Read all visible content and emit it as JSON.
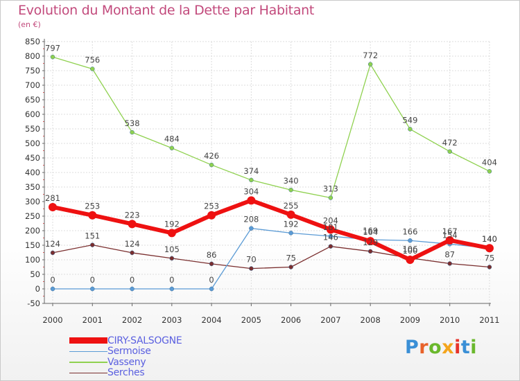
{
  "header": {
    "title": "Evolution du Montant de la Dette par Habitant",
    "subtitle": "(en €)"
  },
  "brand": {
    "letters": [
      "P",
      "r",
      "o",
      "x",
      "i",
      "t",
      "i"
    ],
    "colors": [
      "#3a8fd6",
      "#e8622a",
      "#6ab82c",
      "#f4a51c",
      "#e6332a",
      "#3a8fd6",
      "#6ab82c"
    ]
  },
  "chart_data": {
    "type": "line",
    "title": "Evolution du Montant de la Dette par Habitant",
    "subtitle": "(en €)",
    "xlabel": "",
    "ylabel": "",
    "ylim": [
      -50,
      850
    ],
    "yticks": [
      -50,
      0,
      50,
      100,
      150,
      200,
      250,
      300,
      350,
      400,
      450,
      500,
      550,
      600,
      650,
      700,
      750,
      800,
      850
    ],
    "x": [
      "2000",
      "2001",
      "2002",
      "2003",
      "2004",
      "2005",
      "2006",
      "2007",
      "2008",
      "2009",
      "2010",
      "2011"
    ],
    "grid": true,
    "legend_position": "bottom-left",
    "series": [
      {
        "name": "CIRY-SALSOGNE",
        "color": "#ee1111",
        "values": [
          281,
          253,
          223,
          192,
          253,
          304,
          255,
          204,
          164,
          100,
          167,
          140
        ]
      },
      {
        "name": "Sermoise",
        "color": "#5b9bd5",
        "values": [
          0,
          0,
          0,
          0,
          0,
          208,
          192,
          181,
          169,
          166,
          154,
          140
        ]
      },
      {
        "name": "Vasseny",
        "color": "#8fd14f",
        "values": [
          797,
          756,
          538,
          484,
          426,
          374,
          340,
          313,
          772,
          549,
          472,
          404
        ]
      },
      {
        "name": "Serches",
        "color": "#7a2e2e",
        "values": [
          124,
          151,
          124,
          105,
          86,
          70,
          75,
          146,
          129,
          106,
          87,
          75
        ]
      }
    ]
  }
}
